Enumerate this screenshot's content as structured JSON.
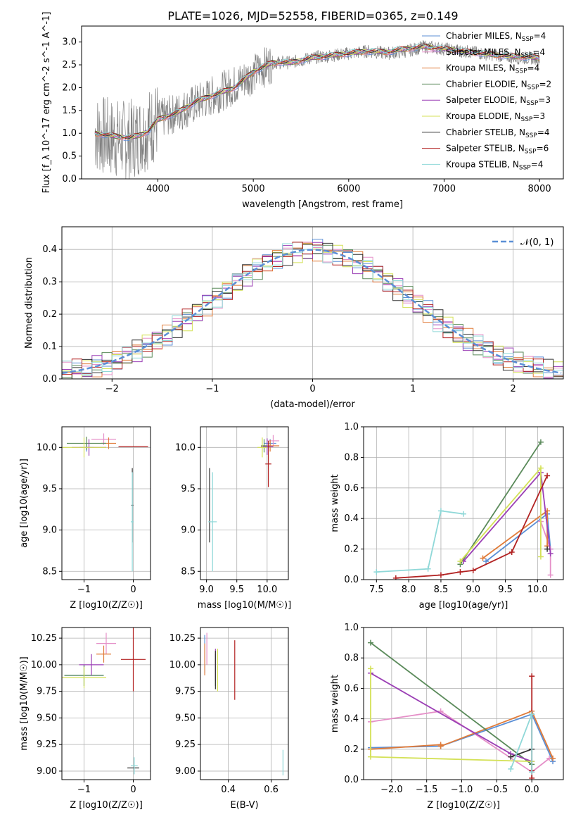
{
  "figure": {
    "title": "PLATE=1026, MJD=52558, FIBERID=0365, z=0.149"
  },
  "colors": {
    "grid": "#b0b0b0",
    "spectrum": "#808080",
    "normal": "#5b8fd6"
  },
  "models": [
    {
      "name": "Chabrier MILES",
      "nssp": "4",
      "color": "#5b8fd6"
    },
    {
      "name": "Salpeter MILES",
      "nssp": "4",
      "color": "#e58fc8"
    },
    {
      "name": "Kroupa MILES",
      "nssp": "4",
      "color": "#e07b39"
    },
    {
      "name": "Chabrier ELODIE",
      "nssp": "2",
      "color": "#5a8a5a"
    },
    {
      "name": "Salpeter ELODIE",
      "nssp": "3",
      "color": "#9b3fb5"
    },
    {
      "name": "Kroupa ELODIE",
      "nssp": "3",
      "color": "#d4e157"
    },
    {
      "name": "Chabrier STELIB",
      "nssp": "4",
      "color": "#333333"
    },
    {
      "name": "Salpeter STELIB",
      "nssp": "6",
      "color": "#b22222"
    },
    {
      "name": "Kroupa STELIB",
      "nssp": "4",
      "color": "#8fd8d8"
    }
  ],
  "chart_data": [
    {
      "id": "spectrum",
      "type": "line",
      "xlabel": "wavelength [Angstrom, rest frame]",
      "ylabel": "Flux [f_λ 10^-17 erg cm^-2 s^-1 A^-1]",
      "xlim": [
        3200,
        8250
      ],
      "ylim": [
        0,
        3.35
      ],
      "xticks": [
        4000,
        5000,
        6000,
        7000,
        8000
      ],
      "yticks": [
        0.0,
        0.5,
        1.0,
        1.5,
        2.0,
        2.5,
        3.0
      ],
      "grid": false,
      "legend": "right",
      "x": [
        3340,
        3500,
        3700,
        3800,
        3900,
        4000,
        4200,
        4400,
        4600,
        4800,
        5000,
        5200,
        5400,
        5600,
        5800,
        6000,
        6200,
        6400,
        6600,
        6800,
        7000,
        7200,
        7400,
        7600,
        7800,
        8000
      ],
      "model_y": [
        1.0,
        0.95,
        0.9,
        0.95,
        1.05,
        1.3,
        1.45,
        1.7,
        1.85,
        2.0,
        2.35,
        2.55,
        2.55,
        2.65,
        2.7,
        2.75,
        2.8,
        2.78,
        2.85,
        2.9,
        2.85,
        2.8,
        2.75,
        2.7,
        2.68,
        2.65
      ],
      "data_y": [
        1.0,
        0.9,
        0.85,
        0.95,
        1.1,
        1.3,
        1.45,
        1.65,
        1.85,
        2.05,
        2.3,
        2.55,
        2.55,
        2.65,
        2.7,
        2.75,
        2.8,
        2.75,
        2.8,
        2.9,
        2.85,
        2.8,
        2.75,
        2.7,
        2.65,
        2.65
      ]
    },
    {
      "id": "residuals",
      "type": "line",
      "xlabel": "(data-model)/error",
      "ylabel": "Normed distribution",
      "xlim": [
        -2.5,
        2.5
      ],
      "ylim": [
        0,
        0.47
      ],
      "xticks": [
        -2,
        -1,
        0,
        1,
        2
      ],
      "yticks": [
        0.0,
        0.1,
        0.2,
        0.3,
        0.4
      ],
      "grid": true,
      "legend": "top-right",
      "legend_label": "𝒩(0, 1)"
    },
    {
      "id": "Z-age",
      "type": "scatter",
      "xlabel": "Z [log10(Z/Z☉)]",
      "ylabel": "age [log10(age/yr)]",
      "xlim": [
        -1.45,
        0.35
      ],
      "ylim": [
        8.4,
        10.25
      ],
      "xticks": [
        -1,
        0
      ],
      "yticks": [
        8.5,
        9.0,
        9.5,
        10.0
      ],
      "grid": true,
      "points": [
        {
          "m": 0,
          "x": -0.95,
          "y": 10.0,
          "xe": 0.15,
          "ye": 0.05
        },
        {
          "m": 1,
          "x": -0.6,
          "y": 10.1,
          "xe": 0.25,
          "ye": 0.07
        },
        {
          "m": 2,
          "x": -0.5,
          "y": 10.05,
          "xe": 0.15,
          "ye": 0.07
        },
        {
          "m": 3,
          "x": -0.95,
          "y": 10.05,
          "xe": 0.4,
          "ye": 0.08
        },
        {
          "m": 4,
          "x": -0.9,
          "y": 10.0,
          "xe": 0.35,
          "ye": 0.1
        },
        {
          "m": 5,
          "x": -1.0,
          "y": 10.0,
          "xe": 0.45,
          "ye": 0.12
        },
        {
          "m": 6,
          "x": -0.02,
          "y": 9.3,
          "xe": 0.02,
          "ye": 0.45
        },
        {
          "m": 7,
          "x": 0.0,
          "y": 10.01,
          "xe": 0.3,
          "ye": 0.0
        },
        {
          "m": 8,
          "x": -0.02,
          "y": 9.1,
          "xe": 0.03,
          "ye": 0.6
        }
      ]
    },
    {
      "id": "mass-age",
      "type": "scatter",
      "xlabel": "mass [log10(M/M☉)]",
      "ylabel": "",
      "xlim": [
        8.9,
        10.35
      ],
      "ylim": [
        8.4,
        10.25
      ],
      "xticks": [
        9.0,
        9.5,
        10.0
      ],
      "yticks": [
        8.5,
        9.0,
        9.5,
        10.0
      ],
      "grid": true,
      "points": [
        {
          "m": 0,
          "x": 10.05,
          "y": 10.05,
          "xe": 0.1,
          "ye": 0.05
        },
        {
          "m": 1,
          "x": 10.1,
          "y": 10.08,
          "xe": 0.1,
          "ye": 0.07
        },
        {
          "m": 2,
          "x": 10.05,
          "y": 10.02,
          "xe": 0.15,
          "ye": 0.07
        },
        {
          "m": 3,
          "x": 9.95,
          "y": 10.02,
          "xe": 0.05,
          "ye": 0.08
        },
        {
          "m": 4,
          "x": 10.0,
          "y": 10.01,
          "xe": 0.1,
          "ye": 0.1
        },
        {
          "m": 5,
          "x": 9.92,
          "y": 10.0,
          "xe": 0.08,
          "ye": 0.12
        },
        {
          "m": 6,
          "x": 9.05,
          "y": 9.3,
          "xe": 0.0,
          "ye": 0.45
        },
        {
          "m": 7,
          "x": 10.02,
          "y": 9.8,
          "xe": 0.05,
          "ye": 0.28
        },
        {
          "m": 8,
          "x": 9.1,
          "y": 9.1,
          "xe": 0.07,
          "ye": 0.6
        }
      ]
    },
    {
      "id": "age-weight",
      "type": "line",
      "xlabel": "age [log10(age/yr)]",
      "ylabel": "mass weight",
      "xlim": [
        7.3,
        10.4
      ],
      "ylim": [
        0,
        1.0
      ],
      "xticks": [
        7.5,
        8.0,
        8.5,
        9.0,
        9.5,
        10.0
      ],
      "yticks": [
        0.0,
        0.2,
        0.4,
        0.6,
        0.8,
        1.0
      ],
      "grid": true,
      "series": [
        {
          "m": 0,
          "x": [
            9.2,
            10.15,
            10.2
          ],
          "y": [
            0.12,
            0.43,
            0.2
          ]
        },
        {
          "m": 1,
          "x": [
            10.05,
            10.2,
            10.2
          ],
          "y": [
            0.38,
            0.2,
            0.03
          ]
        },
        {
          "m": 2,
          "x": [
            9.15,
            10.15,
            10.15
          ],
          "y": [
            0.14,
            0.45,
            0.22
          ]
        },
        {
          "m": 3,
          "x": [
            8.8,
            10.05
          ],
          "y": [
            0.1,
            0.9
          ]
        },
        {
          "m": 4,
          "x": [
            8.85,
            10.05,
            10.2
          ],
          "y": [
            0.12,
            0.7,
            0.17
          ]
        },
        {
          "m": 5,
          "x": [
            8.8,
            10.05,
            10.05
          ],
          "y": [
            0.12,
            0.73,
            0.15
          ]
        },
        {
          "m": 6,
          "x": [
            10.15
          ],
          "y": [
            0.2
          ]
        },
        {
          "m": 7,
          "x": [
            7.8,
            8.5,
            8.8,
            9.0,
            9.6,
            10.15
          ],
          "y": [
            0.01,
            0.03,
            0.05,
            0.06,
            0.18,
            0.68
          ]
        },
        {
          "m": 8,
          "x": [
            7.5,
            8.3,
            8.5,
            8.85
          ],
          "y": [
            0.05,
            0.07,
            0.45,
            0.43
          ]
        }
      ]
    },
    {
      "id": "Z-mass",
      "type": "scatter",
      "xlabel": "Z [log10(Z/Z☉)]",
      "ylabel": "mass [log10(M/M☉)]",
      "xlim": [
        -1.45,
        0.35
      ],
      "ylim": [
        8.92,
        10.35
      ],
      "xticks": [
        -1,
        0
      ],
      "yticks": [
        9.0,
        9.25,
        9.5,
        9.75,
        10.0,
        10.25
      ],
      "grid": true,
      "points": [
        {
          "m": 0,
          "x": -1.0,
          "y": 9.9,
          "xe": 0.4,
          "ye": 0.1
        },
        {
          "m": 1,
          "x": -0.55,
          "y": 10.2,
          "xe": 0.2,
          "ye": 0.1
        },
        {
          "m": 2,
          "x": -0.6,
          "y": 10.1,
          "xe": 0.15,
          "ye": 0.08
        },
        {
          "m": 3,
          "x": -1.0,
          "y": 9.9,
          "xe": 0.4,
          "ye": 0.1
        },
        {
          "m": 4,
          "x": -0.85,
          "y": 10.0,
          "xe": 0.25,
          "ye": 0.1
        },
        {
          "m": 5,
          "x": -1.0,
          "y": 9.88,
          "xe": 0.45,
          "ye": 0.1
        },
        {
          "m": 6,
          "x": 0.0,
          "y": 9.03,
          "xe": 0.12,
          "ye": 0.0
        },
        {
          "m": 7,
          "x": 0.0,
          "y": 10.05,
          "xe": 0.25,
          "ye": 0.3
        },
        {
          "m": 8,
          "x": 0.02,
          "y": 9.05,
          "xe": 0.07,
          "ye": 0.08
        }
      ]
    },
    {
      "id": "EBV-mass",
      "type": "scatter",
      "xlabel": "E(B-V)",
      "ylabel": "",
      "xlim": [
        0.27,
        0.68
      ],
      "ylim": [
        8.92,
        10.35
      ],
      "xticks": [
        0.2,
        0.4,
        0.6
      ],
      "yticks": [
        9.0,
        9.25,
        9.5,
        9.75,
        10.0,
        10.25
      ],
      "grid": true,
      "points": [
        {
          "m": 0,
          "x": 0.29,
          "y": 10.1,
          "xe": 0,
          "ye": 0.18
        },
        {
          "m": 1,
          "x": 0.3,
          "y": 10.15,
          "xe": 0,
          "ye": 0.15
        },
        {
          "m": 2,
          "x": 0.29,
          "y": 10.05,
          "xe": 0,
          "ye": 0.15
        },
        {
          "m": 3,
          "x": 0.34,
          "y": 9.95,
          "xe": 0,
          "ye": 0.15
        },
        {
          "m": 4,
          "x": 0.34,
          "y": 10.0,
          "xe": 0,
          "ye": 0.15
        },
        {
          "m": 5,
          "x": 0.35,
          "y": 9.95,
          "xe": 0,
          "ye": 0.2
        },
        {
          "m": 6,
          "x": 0.34,
          "y": 9.95,
          "xe": 0,
          "ye": 0.18
        },
        {
          "m": 7,
          "x": 0.43,
          "y": 9.95,
          "xe": 0,
          "ye": 0.28
        },
        {
          "m": 8,
          "x": 0.655,
          "y": 9.08,
          "xe": 0,
          "ye": 0.12
        }
      ]
    },
    {
      "id": "Z-weight",
      "type": "line",
      "xlabel": "Z [log10(Z/Z☉)]",
      "ylabel": "mass weight",
      "xlim": [
        -2.4,
        0.45
      ],
      "ylim": [
        0,
        1.0
      ],
      "xticks": [
        -2.0,
        -1.5,
        -1.0,
        -0.5,
        0.0
      ],
      "yticks": [
        0.0,
        0.2,
        0.4,
        0.6,
        0.8,
        1.0
      ],
      "grid": true,
      "series": [
        {
          "m": 0,
          "x": [
            -2.3,
            -1.3,
            0.0,
            0.3
          ],
          "y": [
            0.21,
            0.22,
            0.43,
            0.12
          ]
        },
        {
          "m": 1,
          "x": [
            -2.3,
            -1.3,
            0.0,
            0.25
          ],
          "y": [
            0.38,
            0.45,
            0.05,
            0.14
          ]
        },
        {
          "m": 2,
          "x": [
            -2.3,
            -1.3,
            -1.3,
            0.0,
            0.3
          ],
          "y": [
            0.2,
            0.23,
            0.22,
            0.45,
            0.14
          ]
        },
        {
          "m": 3,
          "x": [
            -2.3,
            0.0
          ],
          "y": [
            0.9,
            0.1
          ]
        },
        {
          "m": 4,
          "x": [
            -2.3,
            -0.3,
            0.0
          ],
          "y": [
            0.7,
            0.17,
            0.12
          ]
        },
        {
          "m": 5,
          "x": [
            -2.3,
            -2.3,
            0.0
          ],
          "y": [
            0.73,
            0.15,
            0.12
          ]
        },
        {
          "m": 6,
          "x": [
            -0.3,
            0.0
          ],
          "y": [
            0.15,
            0.2
          ]
        },
        {
          "m": 7,
          "x": [
            0.0,
            0.0,
            0.0
          ],
          "y": [
            0.68,
            0.06,
            0.01
          ]
        },
        {
          "m": 8,
          "x": [
            -0.3,
            0.0,
            0.0
          ],
          "y": [
            0.07,
            0.43,
            0.05
          ]
        }
      ]
    }
  ]
}
